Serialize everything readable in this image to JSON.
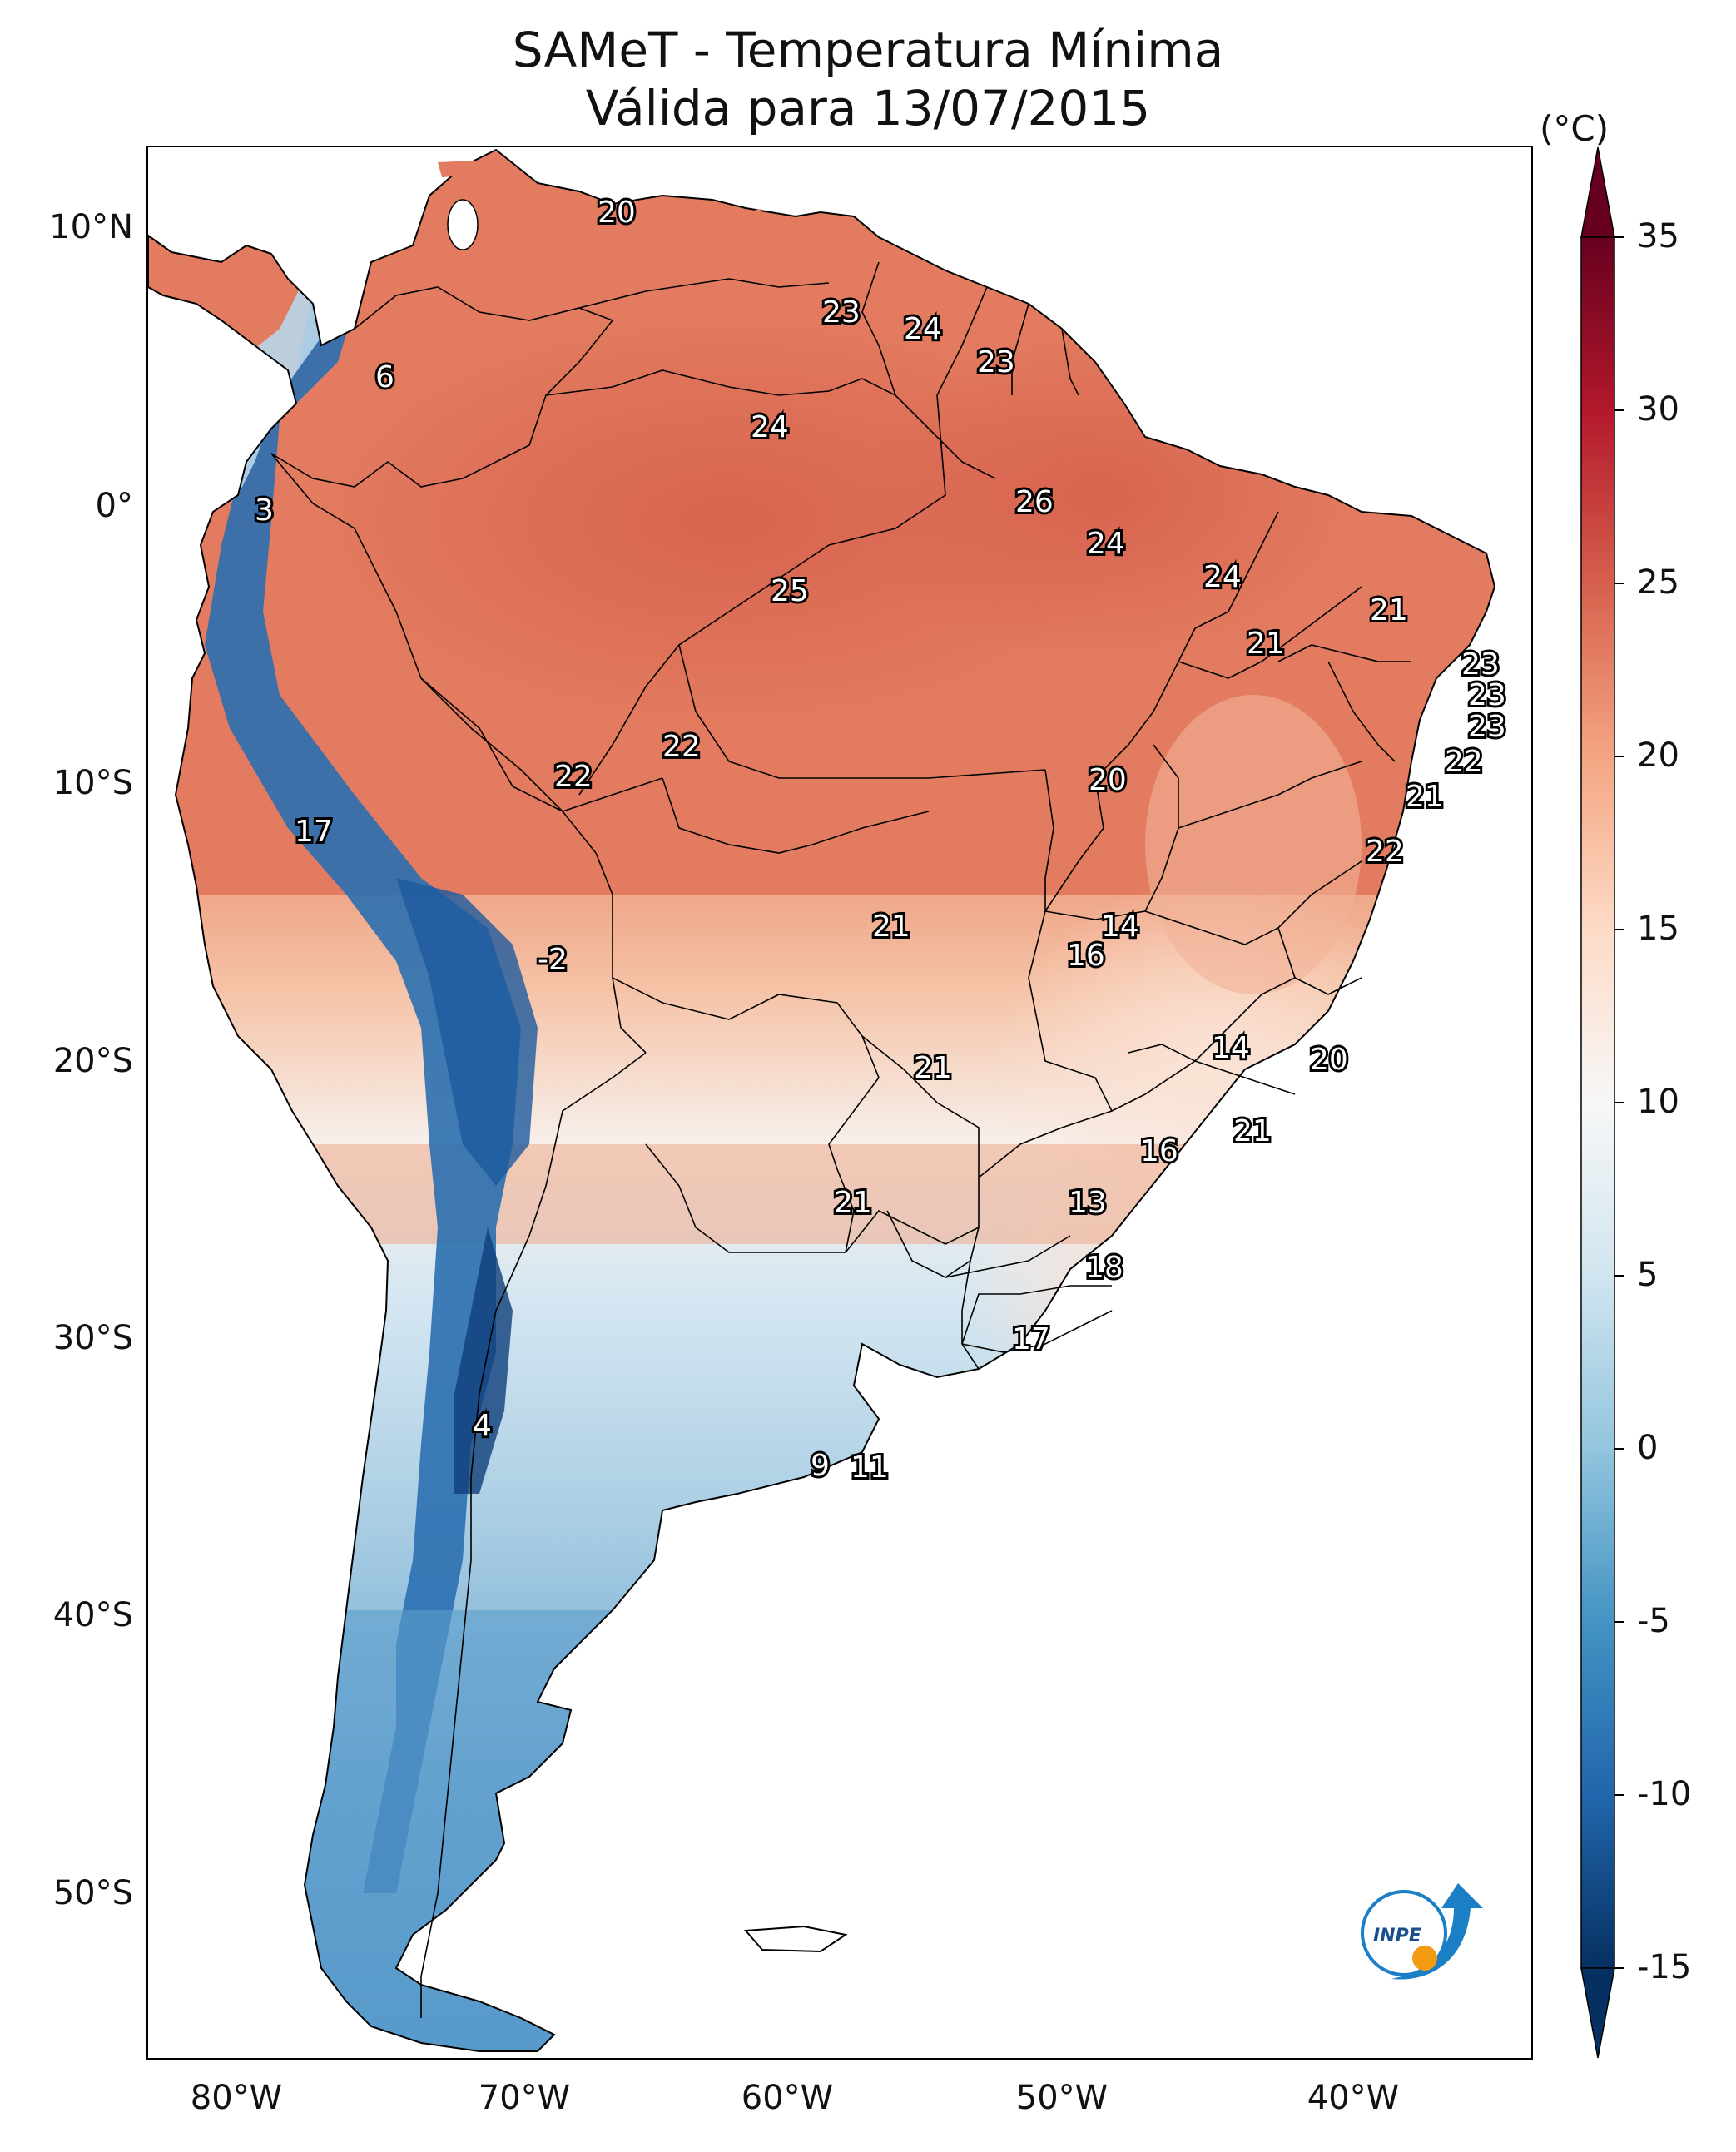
{
  "title": {
    "line1": "SAMeT - Temperatura Mínima",
    "line2": "Válida para 13/07/2015"
  },
  "axes": {
    "lat_ticks": [
      "10°N",
      "0°",
      "10°S",
      "20°S",
      "30°S",
      "40°S",
      "50°S"
    ],
    "lon_ticks": [
      "80°W",
      "70°W",
      "60°W",
      "50°W",
      "40°W"
    ]
  },
  "colorbar": {
    "unit": "(°C)",
    "ticks": [
      "35",
      "30",
      "25",
      "20",
      "15",
      "10",
      "5",
      "0",
      "-5",
      "-10",
      "-15"
    ],
    "range": [
      -15,
      35
    ],
    "colors": [
      "#053061",
      "#2166ac",
      "#4393c3",
      "#92c5de",
      "#d1e5f0",
      "#f7f7f7",
      "#fddbc7",
      "#f4a582",
      "#d6604d",
      "#b2182b",
      "#67001f"
    ]
  },
  "labels": [
    {
      "text": "20"
    },
    {
      "text": "23"
    },
    {
      "text": "24"
    },
    {
      "text": "23"
    },
    {
      "text": "6"
    },
    {
      "text": "24"
    },
    {
      "text": "3"
    },
    {
      "text": "26"
    },
    {
      "text": "24"
    },
    {
      "text": "24"
    },
    {
      "text": "25"
    },
    {
      "text": "21"
    },
    {
      "text": "21"
    },
    {
      "text": "23"
    },
    {
      "text": "23"
    },
    {
      "text": "23"
    },
    {
      "text": "22"
    },
    {
      "text": "22"
    },
    {
      "text": "22"
    },
    {
      "text": "20"
    },
    {
      "text": "21"
    },
    {
      "text": "17"
    },
    {
      "text": "22"
    },
    {
      "text": "21"
    },
    {
      "text": "14"
    },
    {
      "text": "-2"
    },
    {
      "text": "16"
    },
    {
      "text": "14"
    },
    {
      "text": "21"
    },
    {
      "text": "20"
    },
    {
      "text": "16"
    },
    {
      "text": "21"
    },
    {
      "text": "21"
    },
    {
      "text": "13"
    },
    {
      "text": "18"
    },
    {
      "text": "17"
    },
    {
      "text": "4"
    },
    {
      "text": "9"
    },
    {
      "text": "11"
    }
  ],
  "logo": {
    "text": "INPE"
  }
}
